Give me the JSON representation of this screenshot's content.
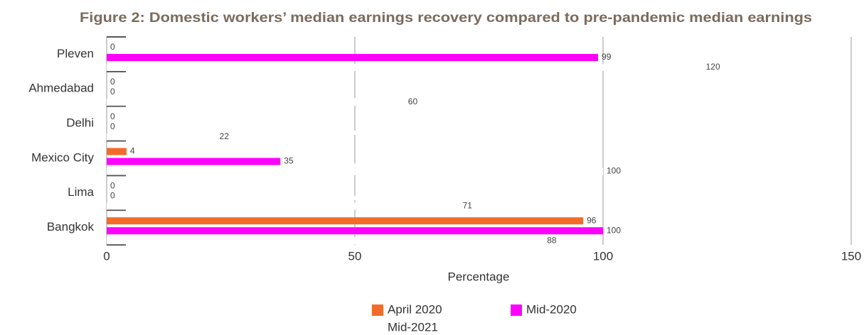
{
  "chart_data": {
    "type": "hbar",
    "title": "Figure 2: Domestic workers’ median earnings recovery compared to pre-pandemic median earnings",
    "categories": [
      "Pleven",
      "Ahmedabad",
      "Delhi",
      "Mexico City",
      "Lima",
      "Bangkok"
    ],
    "series": [
      {
        "name": "April 2020",
        "color": "#f26b2a",
        "values": [
          0,
          0,
          0,
          4,
          0,
          96
        ]
      },
      {
        "name": "Mid-2020",
        "color": "#ff00ff",
        "values": [
          99,
          0,
          0,
          35,
          0,
          100
        ]
      },
      {
        "name": "Mid-2021",
        "color": "#ffffff",
        "values": [
          120,
          60,
          22,
          100,
          71,
          88
        ]
      }
    ],
    "xlabel": "Percentage",
    "xlim": [
      0,
      150
    ],
    "xticks": [
      0,
      50,
      100,
      150
    ],
    "grid": true
  }
}
